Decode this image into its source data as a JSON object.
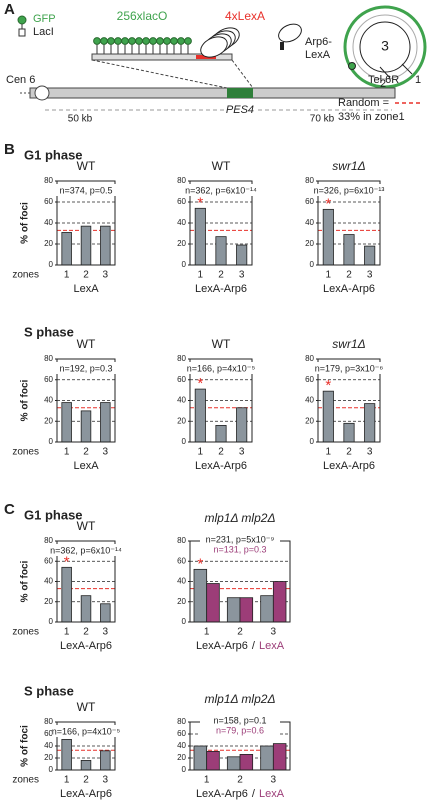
{
  "panels": {
    "a": "A",
    "b": "B",
    "c": "C"
  },
  "sections": {
    "b_g1": "G1 phase",
    "b_s": "S phase",
    "c_g1": "G1 phase",
    "c_s": "S phase"
  },
  "diagram": {
    "gfp": "GFP",
    "laci": "LacI",
    "laco": "256xlacO",
    "lexa_sites": "4xLexA",
    "arp6_line1": "Arp6-",
    "arp6_line2": "LexA",
    "cen": "Cen 6",
    "tel": "Tel 6R",
    "gene": "PES4",
    "left_dist": "50 kb",
    "right_dist": "70 kb",
    "zone3": "3",
    "zone2": "2",
    "zone1": "1",
    "random_1": "Random =",
    "random_2": "33% in zone1"
  },
  "chart_data": [
    {
      "type": "bar",
      "title": "WT",
      "annotation": "n=374, p=0.5",
      "ylabel": "% of foci",
      "category_axis_label": "zones",
      "xlabel": "LexA",
      "categories": [
        "1",
        "2",
        "3"
      ],
      "values": [
        31,
        37,
        37
      ],
      "color": "#8b959d",
      "ylim": [
        0,
        80
      ],
      "yticks": [
        0,
        20,
        40,
        60,
        80
      ],
      "reference_line": 33,
      "reference_color": "#e8302a"
    },
    {
      "type": "bar",
      "title": "WT",
      "annotation": "n=362, p=6x10⁻¹⁴",
      "xlabel": "LexA-Arp6",
      "marker": {
        "label": "*",
        "category": "1"
      },
      "categories": [
        "1",
        "2",
        "3"
      ],
      "values": [
        54,
        27,
        19
      ],
      "color": "#8b959d",
      "ylim": [
        0,
        80
      ],
      "yticks": [
        0,
        20,
        40,
        60,
        80
      ],
      "reference_line": 33,
      "reference_color": "#e8302a"
    },
    {
      "type": "bar",
      "title": "swr1Δ",
      "title_style": "italic",
      "annotation": "n=326, p=6x10⁻¹³",
      "xlabel": "LexA-Arp6",
      "marker": {
        "label": "*",
        "category": "1"
      },
      "categories": [
        "1",
        "2",
        "3"
      ],
      "values": [
        53,
        29,
        18
      ],
      "color": "#8b959d",
      "ylim": [
        0,
        80
      ],
      "yticks": [
        0,
        20,
        40,
        60,
        80
      ],
      "reference_line": 33,
      "reference_color": "#e8302a"
    },
    {
      "type": "bar",
      "title": "WT",
      "annotation": "n=192, p=0.3",
      "ylabel": "% of foci",
      "category_axis_label": "zones",
      "xlabel": "LexA",
      "categories": [
        "1",
        "2",
        "3"
      ],
      "values": [
        38,
        30,
        38
      ],
      "color": "#8b959d",
      "ylim": [
        0,
        80
      ],
      "yticks": [
        0,
        20,
        40,
        60,
        80
      ],
      "reference_line": 33,
      "reference_color": "#e8302a"
    },
    {
      "type": "bar",
      "title": "WT",
      "annotation": "n=166, p=4x10⁻⁵",
      "xlabel": "LexA-Arp6",
      "marker": {
        "label": "*",
        "category": "1"
      },
      "categories": [
        "1",
        "2",
        "3"
      ],
      "values": [
        51,
        16,
        33
      ],
      "color": "#8b959d",
      "ylim": [
        0,
        80
      ],
      "yticks": [
        0,
        20,
        40,
        60,
        80
      ],
      "reference_line": 33,
      "reference_color": "#e8302a"
    },
    {
      "type": "bar",
      "title": "swr1Δ",
      "title_style": "italic",
      "annotation": "n=179, p=3x10⁻⁶",
      "xlabel": "LexA-Arp6",
      "marker": {
        "label": "*",
        "category": "1"
      },
      "categories": [
        "1",
        "2",
        "3"
      ],
      "values": [
        49,
        18,
        37
      ],
      "color": "#8b959d",
      "ylim": [
        0,
        80
      ],
      "yticks": [
        0,
        20,
        40,
        60,
        80
      ],
      "reference_line": 33,
      "reference_color": "#e8302a"
    },
    {
      "type": "bar",
      "title": "WT",
      "annotation": "n=362, p=6x10⁻¹⁴",
      "ylabel": "% of foci",
      "category_axis_label": "zones",
      "xlabel": "LexA-Arp6",
      "marker": {
        "label": "*",
        "category": "1"
      },
      "categories": [
        "1",
        "2",
        "3"
      ],
      "values": [
        54,
        26,
        18
      ],
      "color": "#8b959d",
      "ylim": [
        0,
        80
      ],
      "yticks": [
        0,
        20,
        40,
        60,
        80
      ],
      "reference_line": 33,
      "reference_color": "#e8302a"
    },
    {
      "type": "bar",
      "title": "mlp1Δ mlp2Δ",
      "title_style": "italic",
      "legend_separator": "/",
      "marker": {
        "label": "*",
        "category": "1"
      },
      "categories": [
        "1",
        "2",
        "3"
      ],
      "series": [
        {
          "name": "LexA-Arp6",
          "color": "#8b959d",
          "annotation": "n=231, p=5x10⁻⁹",
          "values": [
            52,
            24,
            26
          ]
        },
        {
          "name": "LexA",
          "color": "#9c3d78",
          "annotation": "n=131, p=0.3",
          "values": [
            38,
            24,
            40
          ]
        }
      ],
      "ylim": [
        0,
        80
      ],
      "yticks": [
        0,
        20,
        40,
        60,
        80
      ],
      "reference_line": 33,
      "reference_color": "#e8302a"
    },
    {
      "type": "bar",
      "title": "WT",
      "annotation": "n=166, p=4x10⁻⁵",
      "ylabel": "% of foci",
      "category_axis_label": "zones",
      "xlabel": "LexA-Arp6",
      "marker": {
        "label": "*",
        "category": "1"
      },
      "categories": [
        "1",
        "2",
        "3"
      ],
      "values": [
        51,
        16,
        32
      ],
      "color": "#8b959d",
      "ylim": [
        0,
        80
      ],
      "yticks": [
        0,
        20,
        40,
        60,
        80
      ],
      "reference_line": 33,
      "reference_color": "#e8302a"
    },
    {
      "type": "bar",
      "title": "mlp1Δ mlp2Δ",
      "title_style": "italic",
      "legend_separator": "/",
      "categories": [
        "1",
        "2",
        "3"
      ],
      "series": [
        {
          "name": "LexA-Arp6",
          "color": "#8b959d",
          "annotation": "n=158, p=0.1",
          "values": [
            40,
            22,
            40
          ]
        },
        {
          "name": "LexA",
          "color": "#9c3d78",
          "annotation": "n=79, p=0.6",
          "values": [
            31,
            26,
            44
          ]
        }
      ],
      "ylim": [
        0,
        80
      ],
      "yticks": [
        0,
        20,
        40,
        60,
        80
      ],
      "reference_line": 33,
      "reference_color": "#e8302a"
    }
  ]
}
